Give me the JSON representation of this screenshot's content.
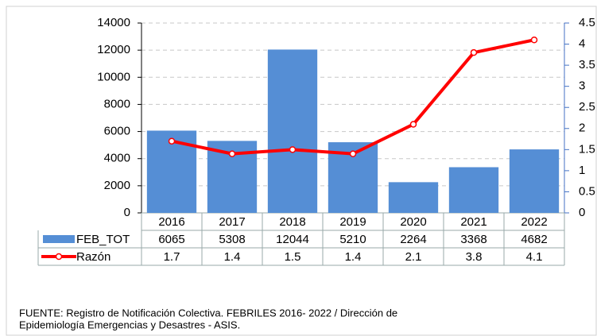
{
  "chart_data": {
    "type": "bar",
    "categories": [
      "2016",
      "2017",
      "2018",
      "2019",
      "2020",
      "2021",
      "2022"
    ],
    "series": [
      {
        "name": "FEB_TOT",
        "type": "bar",
        "color": "#558ed5",
        "values": [
          6065,
          5308,
          12044,
          5210,
          2264,
          3368,
          4682
        ]
      },
      {
        "name": "Razón",
        "type": "line",
        "axis": "y2",
        "color": "#ff0000",
        "values": [
          1.7,
          1.4,
          1.5,
          1.4,
          2.1,
          3.8,
          4.1
        ]
      }
    ],
    "ylim": [
      0,
      14000
    ],
    "yticks": [
      0,
      2000,
      4000,
      6000,
      8000,
      10000,
      12000,
      14000
    ],
    "y2lim": [
      0,
      4.5
    ],
    "y2ticks": [
      0,
      0.5,
      1,
      1.5,
      2,
      2.5,
      3,
      3.5,
      4,
      4.5
    ],
    "grid": true,
    "source": [
      "FUENTE:   Registro de Notificación Colectiva. FEBRILES   2016- 2022 / Dirección de",
      "Epidemiología  Emergencias y Desastres - ASIS."
    ]
  }
}
